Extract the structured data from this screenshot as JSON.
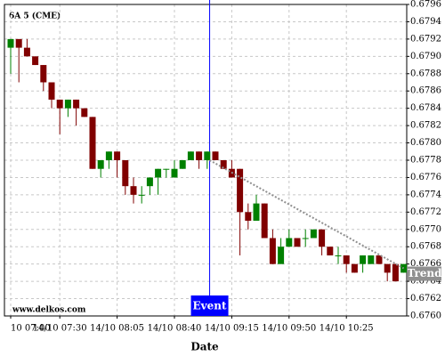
{
  "chart_data": {
    "type": "candlestick",
    "title": "6A 5 (CME)",
    "watermark": "www.delkos.com",
    "x_label": "Date",
    "categories": [
      "10 07:00",
      null,
      null,
      null,
      null,
      null,
      "14/10 07:30",
      null,
      null,
      null,
      null,
      null,
      null,
      "14/10 08:05",
      null,
      null,
      null,
      null,
      null,
      null,
      "14/10 08:40",
      null,
      null,
      null,
      null,
      null,
      null,
      "14/10 09:15",
      null,
      null,
      null,
      null,
      null,
      null,
      "14/10 09:50",
      null,
      null,
      null,
      null,
      null,
      null,
      "14/10 10:25",
      null,
      null,
      null,
      null,
      null,
      null,
      null
    ],
    "open": [
      0.6791,
      0.6792,
      0.6791,
      0.679,
      0.6789,
      0.6787,
      0.6785,
      0.6784,
      0.6785,
      0.6784,
      0.6783,
      0.6777,
      0.6778,
      0.6779,
      0.6778,
      0.6775,
      0.6774,
      0.6775,
      0.6776,
      0.6777,
      0.6776,
      0.6777,
      0.6778,
      0.6779,
      0.6778,
      0.6779,
      0.6778,
      0.6777,
      0.6777,
      0.6772,
      0.6771,
      0.6773,
      0.6769,
      0.6766,
      0.6768,
      0.6769,
      0.6769,
      0.6769,
      0.677,
      0.6768,
      0.6767,
      0.6767,
      0.6766,
      0.6766,
      0.6766,
      0.6767,
      0.6766,
      0.6766,
      0.6765
    ],
    "high": [
      0.6792,
      0.6792,
      0.6792,
      0.679,
      0.6789,
      0.6787,
      0.6785,
      0.6785,
      0.6785,
      0.6784,
      0.6783,
      0.6778,
      0.6779,
      0.6779,
      0.6778,
      0.6776,
      0.6775,
      0.6776,
      0.6777,
      0.6777,
      0.6778,
      0.6778,
      0.6779,
      0.6779,
      0.6779,
      0.6779,
      0.6778,
      0.6778,
      0.6777,
      0.6773,
      0.6774,
      0.6773,
      0.677,
      0.6769,
      0.677,
      0.6769,
      0.677,
      0.677,
      0.677,
      0.6768,
      0.6768,
      0.6767,
      0.6766,
      0.6767,
      0.6767,
      0.6767,
      0.6766,
      0.6766,
      0.6766
    ],
    "low": [
      0.6788,
      0.6787,
      0.679,
      0.6789,
      0.6786,
      0.6784,
      0.6781,
      0.6783,
      0.6782,
      0.6783,
      0.6777,
      0.6776,
      0.6777,
      0.6776,
      0.6774,
      0.6773,
      0.6773,
      0.6774,
      0.6774,
      0.6776,
      0.6776,
      0.6777,
      0.6778,
      0.6777,
      0.6777,
      0.6778,
      0.6777,
      0.6776,
      0.6767,
      0.677,
      0.6771,
      0.6769,
      0.6766,
      0.6766,
      0.6768,
      0.6768,
      0.6768,
      0.6769,
      0.6767,
      0.6767,
      0.6766,
      0.6765,
      0.6765,
      0.6765,
      0.6766,
      0.6766,
      0.6764,
      0.6764,
      0.6765
    ],
    "close": [
      0.6792,
      0.6791,
      0.679,
      0.6789,
      0.6787,
      0.6785,
      0.6784,
      0.6785,
      0.6784,
      0.6783,
      0.6777,
      0.6778,
      0.6779,
      0.6778,
      0.6775,
      0.6774,
      0.6774,
      0.6776,
      0.6777,
      0.6777,
      0.6777,
      0.6778,
      0.6779,
      0.6778,
      0.6779,
      0.6778,
      0.6777,
      0.6776,
      0.6772,
      0.6771,
      0.6773,
      0.6769,
      0.6766,
      0.6768,
      0.6769,
      0.6768,
      0.6769,
      0.677,
      0.6768,
      0.6767,
      0.6767,
      0.6766,
      0.6765,
      0.6767,
      0.6767,
      0.6766,
      0.6765,
      0.6764,
      0.6766
    ],
    "up_color": "#008000",
    "down_color": "#800000",
    "ylim": [
      0.676,
      0.6796
    ],
    "yticks": [
      {
        "value": 0.676,
        "label": "0.6760"
      },
      0.6762,
      0.6764,
      0.6766,
      0.6768,
      {
        "value": 0.677,
        "label": "0.6770"
      },
      0.6772,
      0.6774,
      0.6776,
      0.6778,
      {
        "value": 0.678,
        "label": "0.6780"
      },
      0.6782,
      0.6784,
      0.6786,
      0.6788,
      {
        "value": 0.679,
        "label": "0.6790"
      },
      0.6792,
      0.6794,
      0.6796
    ],
    "grid": true,
    "event": {
      "label": "Event",
      "color": "#0000ff"
    },
    "trend": {
      "label": "Trend",
      "values": [
        0.6778,
        0.67655
      ],
      "color": "#909090"
    }
  }
}
